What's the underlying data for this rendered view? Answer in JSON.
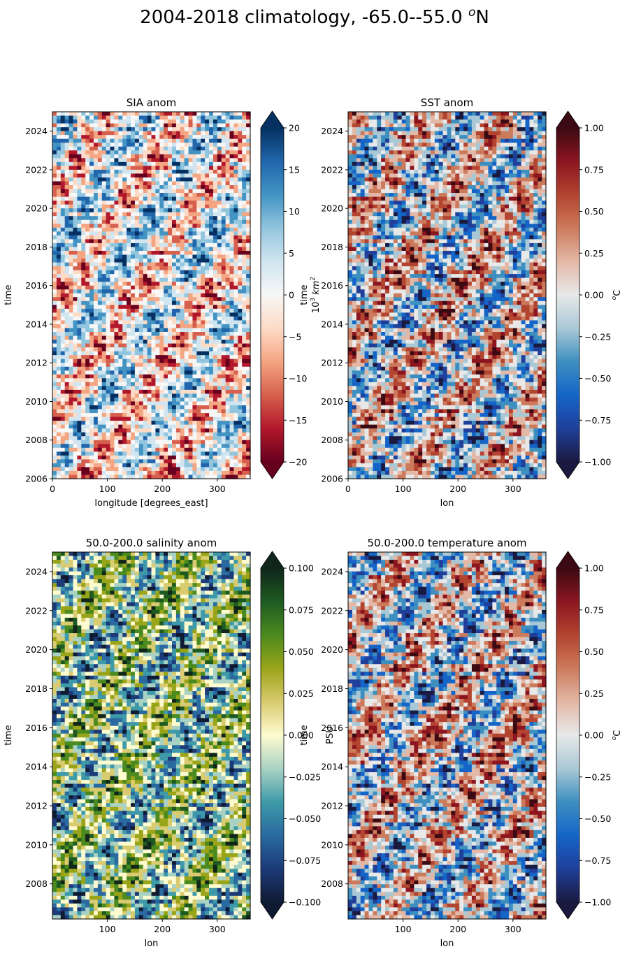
{
  "suptitle": "2004-2018 climatology, -65.0--55.0 ",
  "suptitle_sup": "o",
  "suptitle_tail": "N",
  "chart_data": [
    {
      "type": "heatmap",
      "title": "SIA anom",
      "xlabel": "longitude [degrees_east]",
      "ylabel": "time",
      "xlim": [
        0,
        360
      ],
      "ylim": [
        2006,
        2025
      ],
      "xticks": [
        0,
        100,
        200,
        300
      ],
      "yticks": [
        2006,
        2008,
        2010,
        2012,
        2014,
        2016,
        2018,
        2020,
        2022,
        2024
      ],
      "colorbar": {
        "label_html": "10³ km²",
        "label_pre": "10",
        "label_sup1": "3",
        "label_mid": " km",
        "label_sup2": "2",
        "min": -20,
        "max": 20,
        "ticks": [
          "20",
          "15",
          "10",
          "5",
          "0",
          "−5",
          "−10",
          "−15",
          "−20"
        ],
        "tick_values": [
          20,
          15,
          10,
          5,
          0,
          -5,
          -10,
          -15,
          -20
        ],
        "colormap": [
          "#67001f",
          "#b2182b",
          "#d6604d",
          "#f4a582",
          "#fddbc7",
          "#f7f7f7",
          "#d1e5f0",
          "#92c5de",
          "#4393c3",
          "#2166ac",
          "#053061"
        ]
      }
    },
    {
      "type": "heatmap",
      "title": "SST anom",
      "xlabel": "lon",
      "ylabel": "time",
      "xlim": [
        0,
        360
      ],
      "ylim": [
        2006,
        2025
      ],
      "xticks": [
        0,
        100,
        200,
        300
      ],
      "yticks": [
        2006,
        2008,
        2010,
        2012,
        2014,
        2016,
        2018,
        2020,
        2022,
        2024
      ],
      "colorbar": {
        "label_pre": "",
        "label_sup1": "o",
        "label_mid": "C",
        "label_sup2": "",
        "min": -1,
        "max": 1,
        "ticks": [
          "1.00",
          "0.75",
          "0.50",
          "0.25",
          "0.00",
          "−0.25",
          "−0.50",
          "−0.75",
          "−1.00"
        ],
        "tick_values": [
          1,
          0.75,
          0.5,
          0.25,
          0,
          -0.25,
          -0.5,
          -0.75,
          -1
        ],
        "colormap": [
          "#1a1a40",
          "#1f3f9a",
          "#1565c8",
          "#3d8fc0",
          "#a9c8d6",
          "#e8e8e8",
          "#e3b8a6",
          "#cc7a5c",
          "#b24430",
          "#8c1520",
          "#3c0a12"
        ]
      }
    },
    {
      "type": "heatmap",
      "title": "50.0-200.0 salinity anom",
      "xlabel": "lon",
      "ylabel": "time",
      "xlim": [
        0,
        360
      ],
      "ylim": [
        2006.2,
        2025
      ],
      "xticks": [
        100,
        200,
        300
      ],
      "yticks": [
        2008,
        2010,
        2012,
        2014,
        2016,
        2018,
        2020,
        2022,
        2024
      ],
      "colorbar": {
        "label_pre": "PSU",
        "label_sup1": "",
        "label_mid": "",
        "label_sup2": "",
        "min": -0.1,
        "max": 0.1,
        "ticks": [
          "0.100",
          "0.075",
          "0.050",
          "0.025",
          "0.000",
          "−0.025",
          "−0.050",
          "−0.075",
          "−0.100"
        ],
        "tick_values": [
          0.1,
          0.075,
          0.05,
          0.025,
          0,
          -0.025,
          -0.05,
          -0.075,
          -0.1
        ],
        "colormap": [
          "#101b33",
          "#1c3a78",
          "#2a6aa0",
          "#3e9aa8",
          "#a9d2c4",
          "#fefbd0",
          "#d8cb70",
          "#9aa418",
          "#4b8a1e",
          "#1d5a22",
          "#10261a"
        ]
      }
    },
    {
      "type": "heatmap",
      "title": "50.0-200.0 temperature anom",
      "xlabel": "lon",
      "ylabel": "time",
      "xlim": [
        0,
        360
      ],
      "ylim": [
        2006.2,
        2025
      ],
      "xticks": [
        100,
        200,
        300
      ],
      "yticks": [
        2008,
        2010,
        2012,
        2014,
        2016,
        2018,
        2020,
        2022,
        2024
      ],
      "colorbar": {
        "label_pre": "",
        "label_sup1": "o",
        "label_mid": "C",
        "label_sup2": "",
        "min": -1,
        "max": 1,
        "ticks": [
          "1.00",
          "0.75",
          "0.50",
          "0.25",
          "0.00",
          "−0.25",
          "−0.50",
          "−0.75",
          "−1.00"
        ],
        "tick_values": [
          1,
          0.75,
          0.5,
          0.25,
          0,
          -0.25,
          -0.5,
          -0.75,
          -1
        ],
        "colormap": [
          "#1a1a40",
          "#1f3f9a",
          "#1565c8",
          "#3d8fc0",
          "#a9c8d6",
          "#e8e8e8",
          "#e3b8a6",
          "#cc7a5c",
          "#b24430",
          "#8c1520",
          "#3c0a12"
        ]
      }
    }
  ]
}
